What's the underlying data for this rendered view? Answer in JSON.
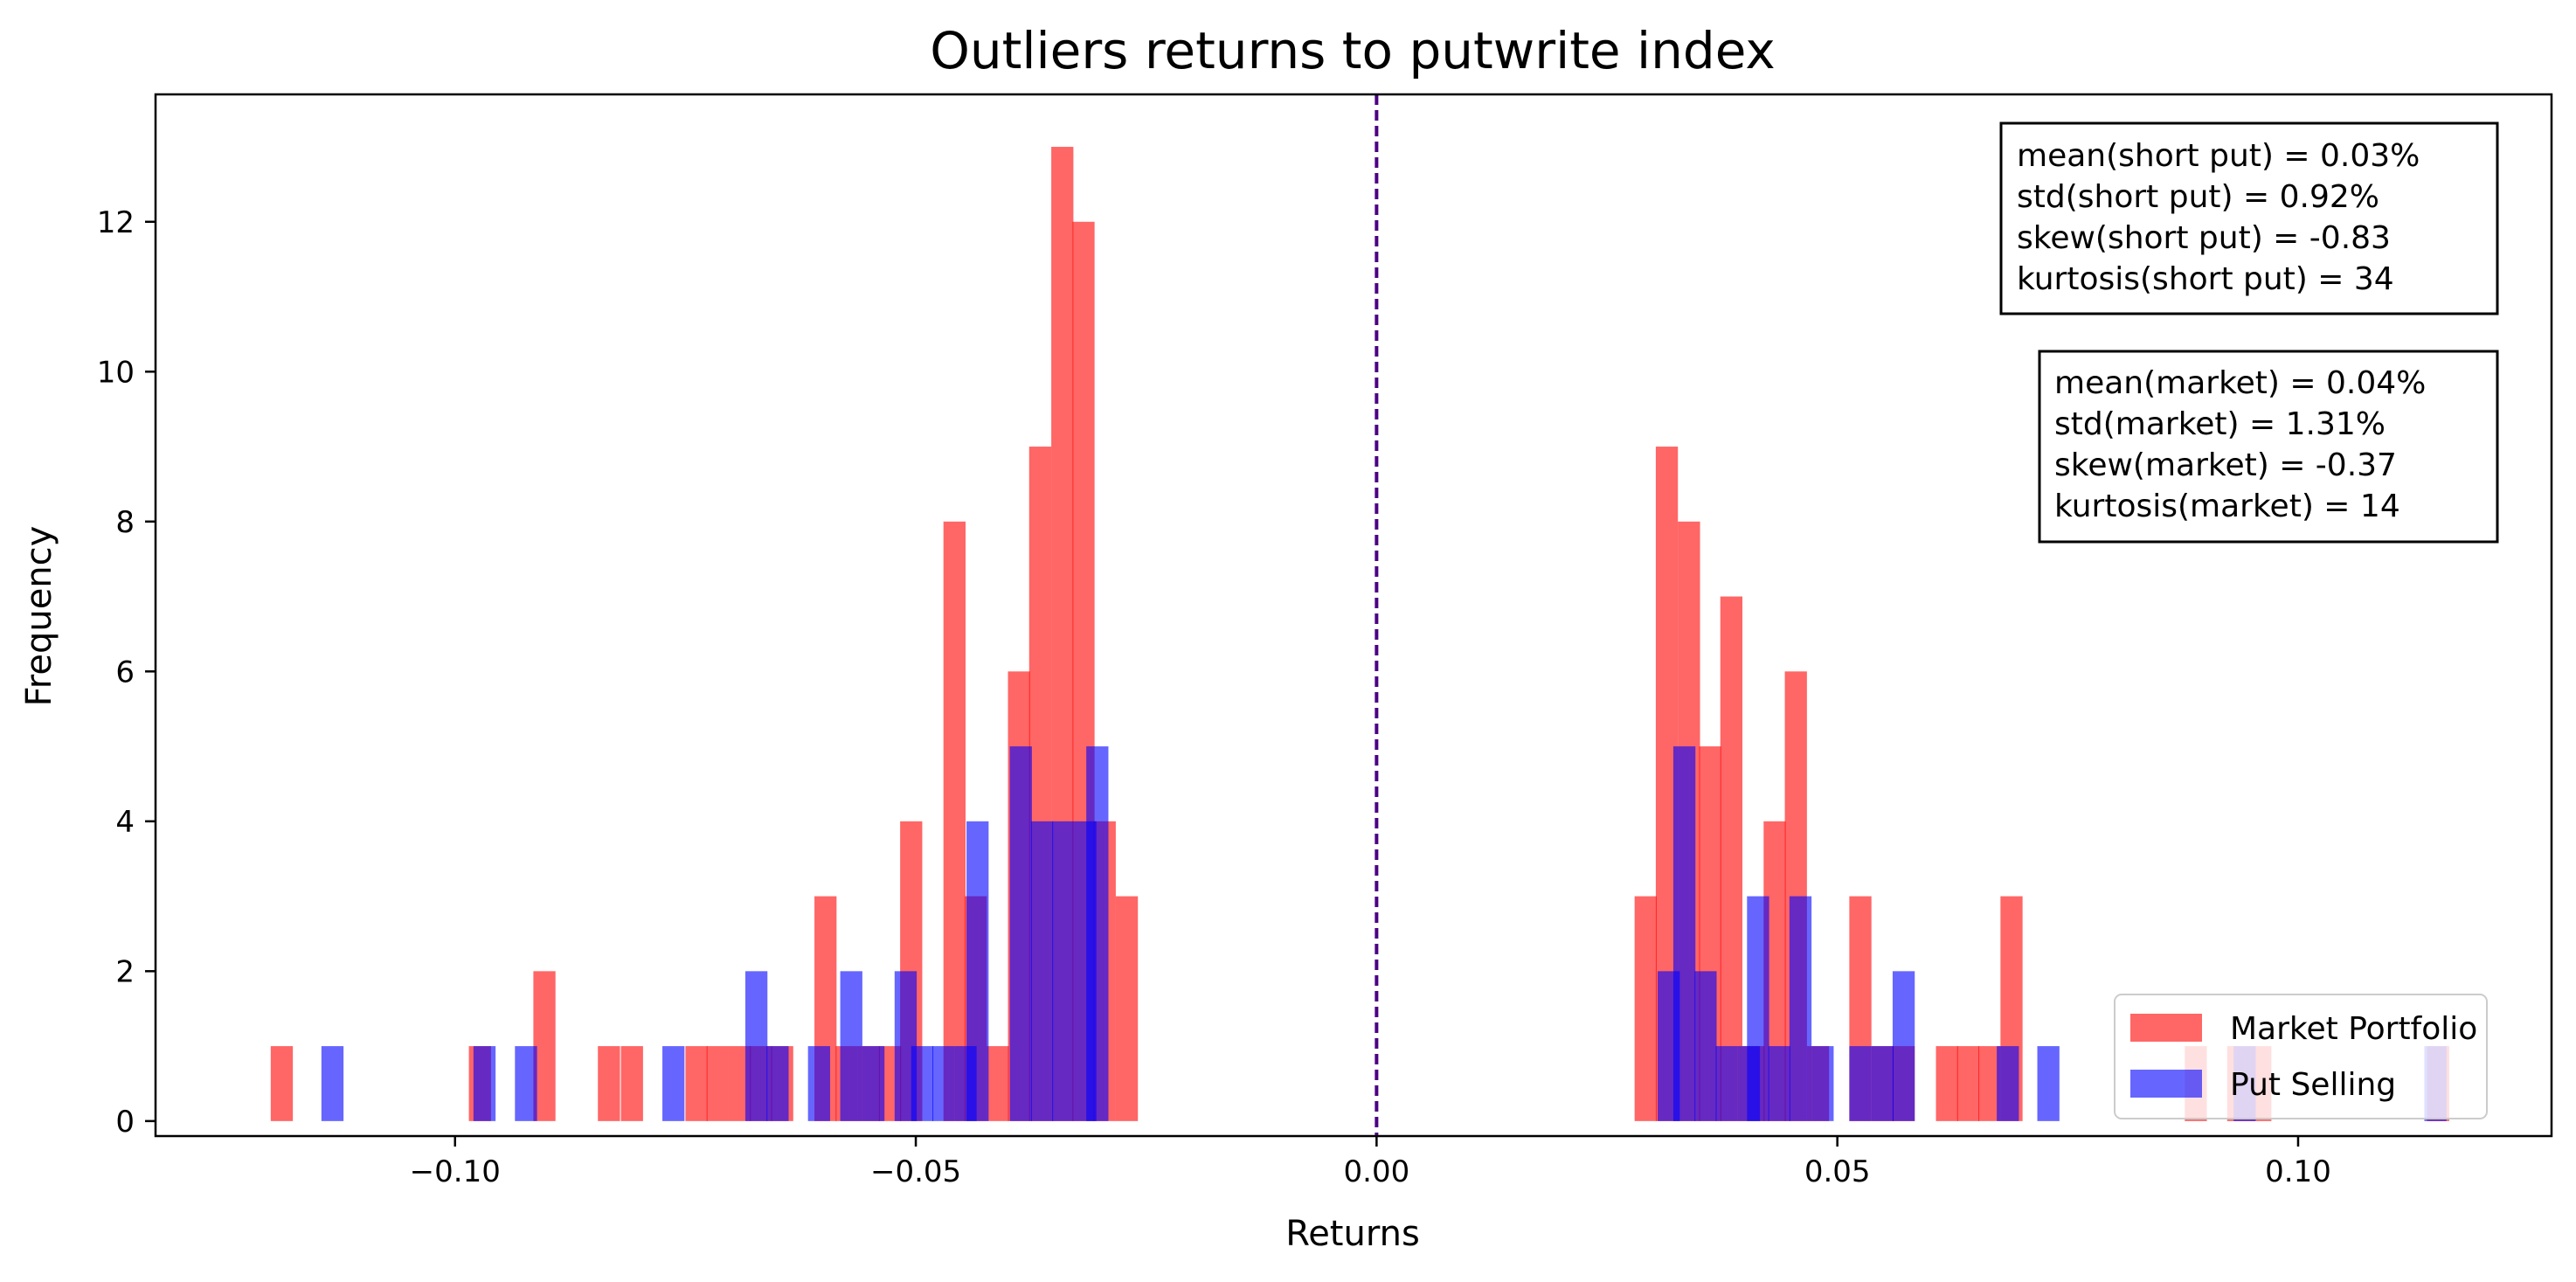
{
  "chart_data": {
    "type": "histogram",
    "title": "Outliers returns to putwrite index",
    "xlabel": "Returns",
    "ylabel": "Frequency",
    "xlim": [
      -0.1325,
      0.1275
    ],
    "ylim": [
      -0.2,
      13.7
    ],
    "xticks": [
      -0.1,
      -0.05,
      0.0,
      0.05,
      0.1
    ],
    "xtick_labels": [
      "−0.10",
      "−0.05",
      "0.00",
      "0.05",
      "0.10"
    ],
    "yticks": [
      0,
      2,
      4,
      6,
      8,
      10,
      12
    ],
    "ytick_labels": [
      "0",
      "2",
      "4",
      "6",
      "8",
      "10",
      "12"
    ],
    "vline": {
      "x": 0.0,
      "style": "dashed",
      "color": "#4b0082"
    },
    "legend_position": "bottom-right",
    "series": [
      {
        "name": "Market Portfolio",
        "color": "#ff0000",
        "alpha": 0.6,
        "bin_width": 0.0024,
        "bins": [
          {
            "x0": -0.12,
            "count": 1
          },
          {
            "x0": -0.0985,
            "count": 1
          },
          {
            "x0": -0.0915,
            "count": 2
          },
          {
            "x0": -0.0845,
            "count": 1
          },
          {
            "x0": -0.082,
            "count": 1
          },
          {
            "x0": -0.075,
            "count": 1
          },
          {
            "x0": -0.0727,
            "count": 1
          },
          {
            "x0": -0.0703,
            "count": 1
          },
          {
            "x0": -0.068,
            "count": 1
          },
          {
            "x0": -0.0657,
            "count": 1
          },
          {
            "x0": -0.061,
            "count": 3
          },
          {
            "x0": -0.0587,
            "count": 1
          },
          {
            "x0": -0.0563,
            "count": 1
          },
          {
            "x0": -0.054,
            "count": 1
          },
          {
            "x0": -0.0517,
            "count": 4
          },
          {
            "x0": -0.047,
            "count": 8
          },
          {
            "x0": -0.0447,
            "count": 3
          },
          {
            "x0": -0.0423,
            "count": 1
          },
          {
            "x0": -0.04,
            "count": 6
          },
          {
            "x0": -0.0377,
            "count": 9
          },
          {
            "x0": -0.0353,
            "count": 13
          },
          {
            "x0": -0.033,
            "count": 12
          },
          {
            "x0": -0.0307,
            "count": 4
          },
          {
            "x0": -0.0283,
            "count": 3
          },
          {
            "x0": 0.028,
            "count": 3
          },
          {
            "x0": 0.0303,
            "count": 9
          },
          {
            "x0": 0.0327,
            "count": 8
          },
          {
            "x0": 0.035,
            "count": 5
          },
          {
            "x0": 0.0373,
            "count": 7
          },
          {
            "x0": 0.0397,
            "count": 1
          },
          {
            "x0": 0.042,
            "count": 4
          },
          {
            "x0": 0.0443,
            "count": 6
          },
          {
            "x0": 0.0467,
            "count": 1
          },
          {
            "x0": 0.0513,
            "count": 3
          },
          {
            "x0": 0.0537,
            "count": 1
          },
          {
            "x0": 0.056,
            "count": 1
          },
          {
            "x0": 0.0607,
            "count": 1
          },
          {
            "x0": 0.063,
            "count": 1
          },
          {
            "x0": 0.0653,
            "count": 1
          },
          {
            "x0": 0.0677,
            "count": 3
          },
          {
            "x0": 0.0877,
            "count": 1
          },
          {
            "x0": 0.0923,
            "count": 1
          },
          {
            "x0": 0.0947,
            "count": 1
          },
          {
            "x0": 0.114,
            "count": 1
          }
        ]
      },
      {
        "name": "Put Selling",
        "color": "#0000ff",
        "alpha": 0.6,
        "bin_width": 0.0024,
        "bins": [
          {
            "x0": -0.1145,
            "count": 1
          },
          {
            "x0": -0.098,
            "count": 1
          },
          {
            "x0": -0.0935,
            "count": 1
          },
          {
            "x0": -0.0775,
            "count": 1
          },
          {
            "x0": -0.0685,
            "count": 2
          },
          {
            "x0": -0.0662,
            "count": 1
          },
          {
            "x0": -0.0617,
            "count": 1
          },
          {
            "x0": -0.0582,
            "count": 2
          },
          {
            "x0": -0.0558,
            "count": 1
          },
          {
            "x0": -0.0523,
            "count": 2
          },
          {
            "x0": -0.0505,
            "count": 1
          },
          {
            "x0": -0.0482,
            "count": 1
          },
          {
            "x0": -0.0458,
            "count": 1
          },
          {
            "x0": -0.0445,
            "count": 4
          },
          {
            "x0": -0.0398,
            "count": 5
          },
          {
            "x0": -0.0375,
            "count": 4
          },
          {
            "x0": -0.0352,
            "count": 4
          },
          {
            "x0": -0.0328,
            "count": 4
          },
          {
            "x0": -0.0315,
            "count": 5
          },
          {
            "x0": 0.0305,
            "count": 2
          },
          {
            "x0": 0.0322,
            "count": 5
          },
          {
            "x0": 0.0345,
            "count": 2
          },
          {
            "x0": 0.0368,
            "count": 1
          },
          {
            "x0": 0.0392,
            "count": 1
          },
          {
            "x0": 0.0402,
            "count": 3
          },
          {
            "x0": 0.0425,
            "count": 1
          },
          {
            "x0": 0.0448,
            "count": 3
          },
          {
            "x0": 0.0472,
            "count": 1
          },
          {
            "x0": 0.0513,
            "count": 1
          },
          {
            "x0": 0.0537,
            "count": 1
          },
          {
            "x0": 0.056,
            "count": 2
          },
          {
            "x0": 0.0673,
            "count": 1
          },
          {
            "x0": 0.0717,
            "count": 1
          },
          {
            "x0": 0.093,
            "count": 1
          },
          {
            "x0": 0.1137,
            "count": 1
          }
        ]
      }
    ],
    "annotations": [
      {
        "lines": [
          "mean(short put) = 0.03%",
          "std(short put) = 0.92%",
          "skew(short put) = -0.83",
          "kurtosis(short put) = 34"
        ]
      },
      {
        "lines": [
          "mean(market) = 0.04%",
          "std(market) = 1.31%",
          "skew(market) = -0.37",
          "kurtosis(market) = 14"
        ]
      }
    ]
  }
}
